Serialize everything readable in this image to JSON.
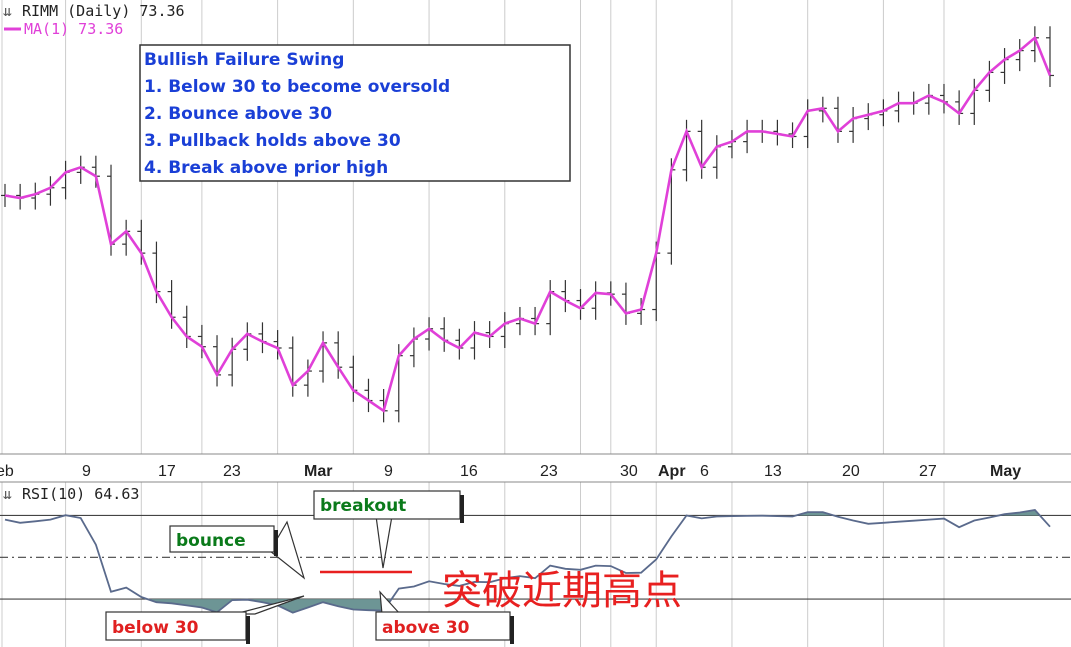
{
  "price_panel": {
    "symbol_label": "RIMM (Daily) 73.36",
    "ma_label": "MA(1) 73.36"
  },
  "rsi_panel": {
    "label": "RSI(10) 64.63"
  },
  "info_box": {
    "lines": [
      "Bullish Failure Swing",
      "1. Below 30 to become oversold",
      "2. Bounce above 30",
      "3. Pullback holds above 30",
      "4. Break above prior high"
    ]
  },
  "annotations": {
    "bounce": "bounce",
    "breakout": "breakout",
    "below_30": "below 30",
    "above_30": "above 30",
    "chinese_note": "突破近期高点"
  },
  "colors": {
    "ma_line": "#e040d8",
    "rsi_line": "#5a6a8c",
    "rsi_fill": "#6d9595",
    "info_text": "#1a3fd6",
    "green_label": "#0a7a1a",
    "red_label": "#e02020",
    "grid": "#cccccc"
  },
  "chart_data": [
    {
      "type": "line",
      "title": "RIMM (Daily) 73.36",
      "series": [
        {
          "name": "MA(1) 73.36",
          "values": [
            64.0,
            63.8,
            64.1,
            64.6,
            65.8,
            66.2,
            65.5,
            60.2,
            61.2,
            59.5,
            56.5,
            54.5,
            53.0,
            52.2,
            50.0,
            52.0,
            53.2,
            52.6,
            52.1,
            49.2,
            50.3,
            52.5,
            50.6,
            48.8,
            48.0,
            47.2,
            51.5,
            52.8,
            53.6,
            52.7,
            52.1,
            53.3,
            53.0,
            54.0,
            54.4,
            54.0,
            56.5,
            55.8,
            55.2,
            56.4,
            56.3,
            54.8,
            55.1,
            59.5,
            66.0,
            69.0,
            66.2,
            67.8,
            68.2,
            69.0,
            69.0,
            68.8,
            68.6,
            70.6,
            70.8,
            69.0,
            70.0,
            70.3,
            70.6,
            71.2,
            71.2,
            71.8,
            71.3,
            70.4,
            72.2,
            73.6,
            74.6,
            75.3,
            76.3,
            73.36
          ]
        }
      ],
      "x_tick_labels": [
        "eb",
        "9",
        "17",
        "23",
        "Mar",
        "9",
        "16",
        "23",
        "30",
        "Apr",
        "6",
        "13",
        "20",
        "27",
        "May"
      ]
    },
    {
      "type": "area",
      "title": "RSI(10) 64.63",
      "series": [
        {
          "name": "RSI(10) 64.63",
          "values": [
            68,
            66.5,
            67.2,
            68,
            70.1,
            68.8,
            56,
            33.5,
            35.5,
            31,
            28.5,
            28,
            27,
            26,
            23.7,
            29.5,
            29.7,
            28.5,
            27,
            23.5,
            26,
            28.5,
            26.6,
            25,
            24.7,
            24.5,
            35,
            36,
            38.5,
            37.2,
            36.3,
            38.2,
            38.1,
            40,
            41,
            40,
            46,
            44.5,
            44,
            46,
            45.8,
            42.5,
            42.6,
            49,
            60,
            70,
            68.6,
            69.5,
            69.7,
            69.8,
            69.9,
            69.7,
            69.5,
            71.6,
            71.6,
            69.4,
            67.6,
            66,
            66.5,
            67,
            67.5,
            68,
            68.5,
            64.4,
            67.6,
            69,
            70.6,
            71.4,
            72.6,
            64.63
          ]
        }
      ],
      "reference_lines": [
        70,
        50,
        30
      ]
    }
  ]
}
